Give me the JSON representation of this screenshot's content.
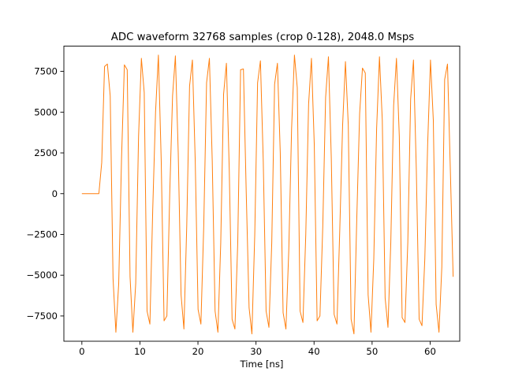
{
  "chart_data": {
    "type": "line",
    "title": "ADC waveform 32768 samples (crop 0-128), 2048.0 Msps",
    "xlabel": "Time [ns]",
    "ylabel": "",
    "xlim": [
      -3.1,
      65.1
    ],
    "ylim": [
      -9050,
      9050
    ],
    "xticks": [
      0,
      10,
      20,
      30,
      40,
      50,
      60
    ],
    "xtick_labels": [
      "0",
      "10",
      "20",
      "30",
      "40",
      "50",
      "60"
    ],
    "yticks": [
      -7500,
      -5000,
      -2500,
      0,
      2500,
      5000,
      7500
    ],
    "ytick_labels": [
      "−7500",
      "−5000",
      "−2500",
      "0",
      "2500",
      "5000",
      "7500"
    ],
    "grid": false,
    "series": [
      {
        "name": "",
        "color": "#ff7f0e",
        "x_start": 0,
        "x_step": 0.48828125,
        "values": [
          0,
          0,
          0,
          0,
          0,
          0,
          0,
          1900,
          7800,
          7950,
          6000,
          -5200,
          -8500,
          -5500,
          2200,
          7900,
          7600,
          -5100,
          -8500,
          -5500,
          3500,
          8300,
          6200,
          -7200,
          -8000,
          -1000,
          5000,
          8500,
          2000,
          -7800,
          -7500,
          0,
          6000,
          8450,
          2500,
          -6200,
          -8300,
          -2000,
          6600,
          8200,
          2000,
          -7100,
          -8000,
          -2000,
          6800,
          8300,
          2000,
          -7200,
          -8500,
          -3000,
          6100,
          8000,
          1500,
          -7700,
          -8300,
          -3000,
          7600,
          7650,
          0,
          -7000,
          -8600,
          -2500,
          6800,
          8150,
          2000,
          -7200,
          -8200,
          -3000,
          6700,
          8000,
          2500,
          -7300,
          -8300,
          -3500,
          4000,
          8500,
          6500,
          -7200,
          -7900,
          -2500,
          5500,
          8300,
          3000,
          -7800,
          -7500,
          -2000,
          5900,
          8400,
          2200,
          -7400,
          -8000,
          -2200,
          4200,
          8100,
          4200,
          -7700,
          -8600,
          -1500,
          4900,
          7700,
          7400,
          -6200,
          -8500,
          -4000,
          4000,
          8400,
          4500,
          -6400,
          -8200,
          -3000,
          5400,
          8300,
          3500,
          -7600,
          -7900,
          -3000,
          5800,
          8200,
          1500,
          -7700,
          -8100,
          -4000,
          3000,
          8200,
          4500,
          -6800,
          -8500,
          -4500,
          7000,
          7950,
          1500,
          -5100
        ]
      }
    ]
  }
}
